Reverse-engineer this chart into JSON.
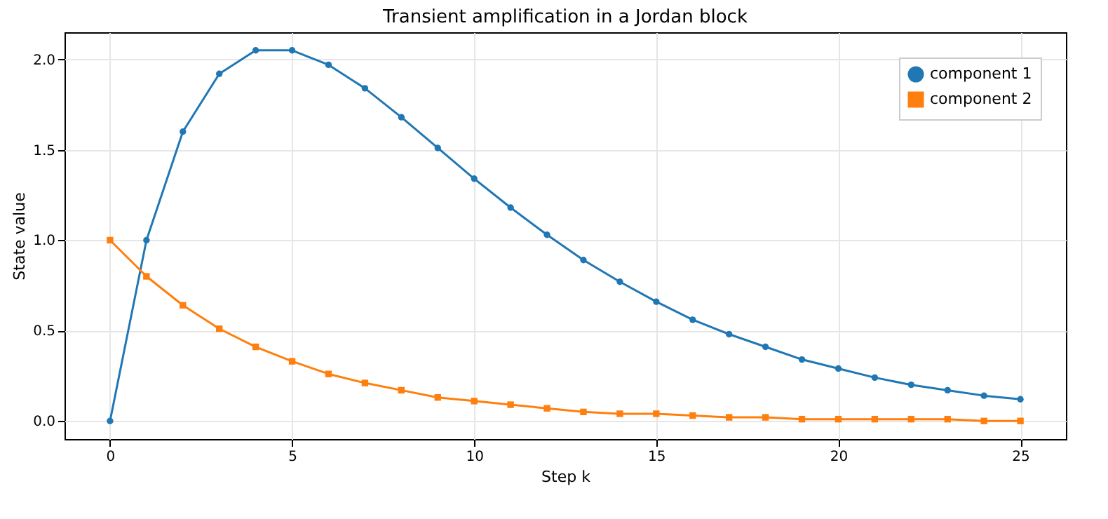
{
  "chart_data": {
    "type": "line",
    "title": "Transient amplification in a Jordan block",
    "xlabel": "Step k",
    "ylabel": "State value",
    "x": [
      0,
      1,
      2,
      3,
      4,
      5,
      6,
      7,
      8,
      9,
      10,
      11,
      12,
      13,
      14,
      15,
      16,
      17,
      18,
      19,
      20,
      21,
      22,
      23,
      24,
      25
    ],
    "series": [
      {
        "name": "component 1",
        "color": "#1f77b4",
        "marker": "circle",
        "values": [
          0,
          1.0,
          1.6,
          1.92,
          2.05,
          2.05,
          1.97,
          1.84,
          1.68,
          1.51,
          1.34,
          1.18,
          1.03,
          0.89,
          0.77,
          0.66,
          0.56,
          0.48,
          0.41,
          0.34,
          0.29,
          0.24,
          0.2,
          0.17,
          0.14,
          0.12
        ]
      },
      {
        "name": "component 2",
        "color": "#ff7f0e",
        "marker": "square",
        "values": [
          1.0,
          0.8,
          0.64,
          0.51,
          0.41,
          0.33,
          0.26,
          0.21,
          0.17,
          0.13,
          0.11,
          0.09,
          0.07,
          0.05,
          0.04,
          0.04,
          0.03,
          0.02,
          0.02,
          0.01,
          0.01,
          0.01,
          0.01,
          0.01,
          0,
          0
        ]
      }
    ],
    "xlim": [
      -1.25,
      26.25
    ],
    "ylim": [
      -0.1,
      2.15
    ],
    "xticks": [
      0,
      5,
      10,
      15,
      20,
      25
    ],
    "yticks": [
      {
        "value": 0,
        "label": "0.0"
      },
      {
        "value": 0.5,
        "label": "0.5"
      },
      {
        "value": 1,
        "label": "1.0"
      },
      {
        "value": 1.5,
        "label": "1.5"
      },
      {
        "value": 2,
        "label": "2.0"
      }
    ],
    "grid": true,
    "legend": "top right",
    "line_style": "solid"
  }
}
